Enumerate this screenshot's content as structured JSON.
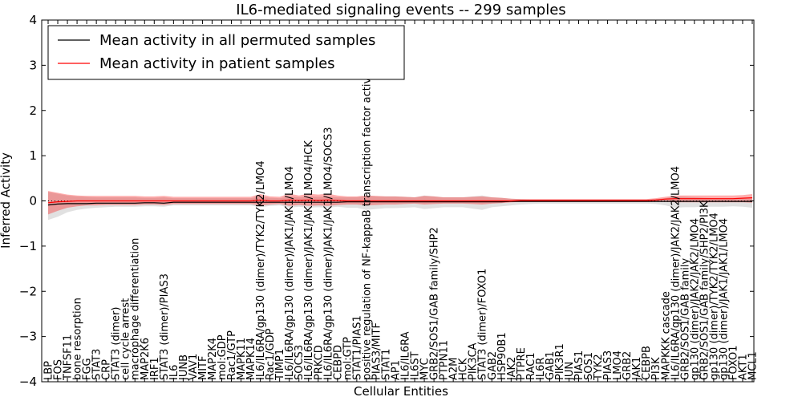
{
  "chart_data": {
    "type": "line",
    "title": "IL6-mediated signaling events -- 299 samples",
    "xlabel": "Cellular Entities",
    "ylabel": "Inferred Activity",
    "ylim": [
      -4,
      4
    ],
    "yticks": [
      -4,
      -3,
      -2,
      -1,
      0,
      1,
      2,
      3,
      4
    ],
    "ytick_labels": [
      "−4",
      "−3",
      "−2",
      "−1",
      "0",
      "1",
      "2",
      "3",
      "4"
    ],
    "legend_position": "top-left",
    "categories": [
      "LBP",
      "FOS",
      "TNFSF11",
      "bone resorption",
      "FGG",
      "STAT3",
      "CRP",
      "STAT3 (dimer)",
      "cell cycle arrest",
      "macrophage differentiation",
      "MAP2K6",
      "IRF1",
      "STAT3 (dimer)/PIAS3",
      "IL6",
      "JUNB",
      "VAV1",
      "MITF",
      "MAP2K4",
      "mol:GDP",
      "Rac1/GTP",
      "MAPK11",
      "MAPK14",
      "IL6/IL6RA/gp130 (dimer)/TYK2/TYK2/LMO4",
      "Rac1/GDP",
      "TIMP1",
      "IL6/IL6RA/gp130 (dimer)/JAK1/JAK1/LMO4",
      "SOCS3",
      "IL6/IL6RA/gp130 (dimer)/JAK1/JAK1/LMO4/HCK",
      "PRKCD",
      "IL6/IL6RA/gp130 (dimer)/JAK1/JAK1/LMO4/SOCS3",
      "CEBPD",
      "mol:GTP",
      "STAT1/PIAS1",
      "positive regulation of NF-kappaB transcription factor activity",
      "PIAS3/MITF",
      "STAT1",
      "AP1",
      "IL6/IL6RA",
      "IL6ST",
      "MYC",
      "GRB2/SOS1/GAB family/SHP2",
      "PTPN11",
      "A2M",
      "HCK",
      "PIK3CA",
      "STAT3 (dimer)/FOXO1",
      "GAB2",
      "HSP90B1",
      "JAK2",
      "PTPRE",
      "RAC1",
      "IL6R",
      "GAB1",
      "PIK3R1",
      "JUN",
      "PIAS1",
      "SOS1",
      "TYK2",
      "PIAS3",
      "LMO4",
      "GRB2",
      "JAK1",
      "CEBPB",
      "PI3K",
      "MAPKKK cascade",
      "IL6/IL6RA/gp130 (dimer)/JAK2/JAK2/LMO4",
      "GRB2/SOS1/GAB family",
      "gp130 (dimer)/JAK2/JAK2/LMO4",
      "GRB2/SOS1/GAB family/SHP2/PI3K",
      "gp130 (dimer)/TYK2/TYK2/LMO4",
      "gp130 (dimer)/JAK1/JAK1/LMO4",
      "FOXO1",
      "AKT1",
      "MCL1"
    ],
    "series": [
      {
        "name": "Mean activity in all permuted samples",
        "color": "#000000",
        "values": [
          -0.09,
          -0.07,
          -0.06,
          -0.06,
          -0.06,
          -0.05,
          -0.05,
          -0.05,
          -0.05,
          -0.05,
          -0.04,
          -0.04,
          -0.05,
          -0.03,
          -0.03,
          -0.03,
          -0.03,
          -0.03,
          -0.03,
          -0.03,
          -0.03,
          -0.03,
          -0.03,
          -0.03,
          -0.03,
          -0.03,
          -0.03,
          -0.03,
          -0.03,
          -0.03,
          -0.03,
          -0.02,
          -0.02,
          -0.02,
          -0.02,
          -0.02,
          -0.02,
          -0.02,
          -0.02,
          -0.02,
          -0.02,
          -0.02,
          -0.02,
          -0.02,
          -0.02,
          -0.02,
          -0.02,
          -0.02,
          -0.01,
          -0.01,
          -0.01,
          -0.01,
          -0.01,
          -0.01,
          -0.01,
          -0.01,
          -0.01,
          -0.01,
          -0.01,
          -0.01,
          -0.01,
          -0.01,
          -0.01,
          -0.01,
          -0.01,
          -0.01,
          -0.01,
          -0.01,
          -0.01,
          -0.01,
          -0.01,
          -0.01,
          -0.01,
          -0.01
        ],
        "band_low": [
          -0.42,
          -0.35,
          -0.25,
          -0.2,
          -0.17,
          -0.15,
          -0.14,
          -0.13,
          -0.13,
          -0.13,
          -0.12,
          -0.12,
          -0.13,
          -0.1,
          -0.1,
          -0.1,
          -0.1,
          -0.1,
          -0.1,
          -0.1,
          -0.1,
          -0.1,
          -0.14,
          -0.11,
          -0.1,
          -0.15,
          -0.13,
          -0.15,
          -0.14,
          -0.15,
          -0.13,
          -0.15,
          -0.15,
          -0.2,
          -0.18,
          -0.16,
          -0.16,
          -0.15,
          -0.14,
          -0.18,
          -0.16,
          -0.14,
          -0.14,
          -0.14,
          -0.17,
          -0.2,
          -0.14,
          -0.12,
          -0.1,
          -0.08,
          -0.07,
          -0.06,
          -0.06,
          -0.06,
          -0.06,
          -0.06,
          -0.06,
          -0.06,
          -0.06,
          -0.06,
          -0.06,
          -0.06,
          -0.06,
          -0.07,
          -0.1,
          -0.15,
          -0.14,
          -0.14,
          -0.13,
          -0.13,
          -0.13,
          -0.12,
          -0.13,
          -0.15
        ],
        "band_high": [
          0.2,
          0.16,
          0.12,
          0.1,
          0.09,
          0.08,
          0.08,
          0.08,
          0.08,
          0.08,
          0.07,
          0.07,
          0.08,
          0.06,
          0.06,
          0.06,
          0.06,
          0.06,
          0.06,
          0.06,
          0.06,
          0.06,
          0.1,
          0.07,
          0.06,
          0.1,
          0.08,
          0.1,
          0.09,
          0.1,
          0.08,
          0.08,
          0.08,
          0.12,
          0.1,
          0.1,
          0.1,
          0.09,
          0.08,
          0.12,
          0.1,
          0.08,
          0.08,
          0.08,
          0.1,
          0.12,
          0.08,
          0.07,
          0.05,
          0.04,
          0.03,
          0.03,
          0.03,
          0.03,
          0.03,
          0.03,
          0.03,
          0.03,
          0.03,
          0.03,
          0.03,
          0.03,
          0.03,
          0.04,
          0.06,
          0.1,
          0.09,
          0.08,
          0.07,
          0.06,
          0.05,
          0.05,
          0.05,
          0.05
        ]
      },
      {
        "name": "Mean activity in patient samples",
        "color": "#ff0000",
        "values": [
          -0.04,
          -0.02,
          -0.01,
          0.0,
          0.0,
          0.0,
          0.0,
          0.0,
          0.0,
          0.0,
          0.0,
          0.0,
          0.0,
          0.0,
          0.0,
          0.0,
          0.0,
          0.0,
          0.0,
          0.0,
          0.0,
          0.0,
          0.02,
          0.0,
          0.0,
          0.02,
          0.01,
          0.02,
          0.01,
          0.02,
          0.01,
          0.0,
          0.0,
          0.0,
          0.0,
          0.0,
          0.0,
          0.0,
          0.0,
          0.0,
          0.0,
          0.0,
          0.0,
          0.0,
          0.0,
          0.0,
          0.0,
          0.0,
          0.0,
          0.01,
          0.01,
          0.01,
          0.01,
          0.01,
          0.01,
          0.01,
          0.01,
          0.01,
          0.01,
          0.01,
          0.01,
          0.01,
          0.01,
          0.02,
          0.04,
          0.05,
          0.05,
          0.05,
          0.05,
          0.05,
          0.05,
          0.05,
          0.06,
          0.07
        ],
        "band_low": [
          -0.3,
          -0.22,
          -0.15,
          -0.12,
          -0.1,
          -0.1,
          -0.09,
          -0.09,
          -0.09,
          -0.09,
          -0.08,
          -0.08,
          -0.09,
          -0.07,
          -0.07,
          -0.07,
          -0.07,
          -0.07,
          -0.07,
          -0.07,
          -0.07,
          -0.07,
          -0.1,
          -0.08,
          -0.07,
          -0.11,
          -0.09,
          -0.11,
          -0.1,
          -0.11,
          -0.09,
          -0.08,
          -0.08,
          -0.1,
          -0.09,
          -0.08,
          -0.08,
          -0.07,
          -0.06,
          -0.08,
          -0.07,
          -0.06,
          -0.06,
          -0.06,
          -0.07,
          -0.08,
          -0.06,
          -0.05,
          -0.03,
          -0.02,
          -0.02,
          -0.02,
          -0.02,
          -0.02,
          -0.02,
          -0.02,
          -0.02,
          -0.02,
          -0.02,
          -0.02,
          -0.02,
          -0.02,
          -0.02,
          -0.02,
          -0.02,
          -0.03,
          -0.03,
          -0.03,
          -0.03,
          -0.03,
          -0.03,
          -0.03,
          -0.03,
          -0.04
        ],
        "band_high": [
          0.22,
          0.18,
          0.14,
          0.12,
          0.11,
          0.11,
          0.11,
          0.11,
          0.11,
          0.11,
          0.1,
          0.1,
          0.11,
          0.09,
          0.09,
          0.09,
          0.09,
          0.09,
          0.09,
          0.09,
          0.09,
          0.09,
          0.15,
          0.1,
          0.09,
          0.16,
          0.12,
          0.16,
          0.14,
          0.16,
          0.12,
          0.1,
          0.1,
          0.12,
          0.11,
          0.1,
          0.1,
          0.09,
          0.08,
          0.11,
          0.1,
          0.08,
          0.08,
          0.08,
          0.09,
          0.1,
          0.08,
          0.07,
          0.05,
          0.04,
          0.04,
          0.04,
          0.04,
          0.04,
          0.04,
          0.04,
          0.04,
          0.04,
          0.04,
          0.04,
          0.04,
          0.04,
          0.04,
          0.06,
          0.09,
          0.12,
          0.12,
          0.12,
          0.12,
          0.12,
          0.12,
          0.12,
          0.13,
          0.15
        ]
      }
    ]
  }
}
